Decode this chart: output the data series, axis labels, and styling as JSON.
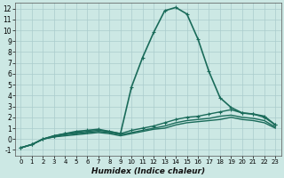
{
  "xlabel": "Humidex (Indice chaleur)",
  "xlim": [
    -0.5,
    23.5
  ],
  "ylim": [
    -1.5,
    12.5
  ],
  "xticks": [
    0,
    1,
    2,
    3,
    4,
    5,
    6,
    7,
    8,
    9,
    10,
    11,
    12,
    13,
    14,
    15,
    16,
    17,
    18,
    19,
    20,
    21,
    22,
    23
  ],
  "yticks": [
    -1,
    0,
    1,
    2,
    3,
    4,
    5,
    6,
    7,
    8,
    9,
    10,
    11,
    12
  ],
  "bg_color": "#cce8e4",
  "grid_color": "#aacccc",
  "line_color": "#1a6b5a",
  "series": [
    {
      "x": [
        0,
        1,
        2,
        3,
        4,
        5,
        6,
        7,
        8,
        9,
        10,
        11,
        12,
        13,
        14,
        15,
        16,
        17,
        18,
        19,
        20,
        21,
        22,
        23
      ],
      "y": [
        -0.8,
        -0.5,
        0.0,
        0.3,
        0.5,
        0.7,
        0.8,
        0.9,
        0.7,
        0.5,
        4.8,
        7.5,
        9.8,
        11.8,
        12.1,
        11.5,
        9.2,
        6.2,
        3.8,
        2.9,
        2.4,
        2.3,
        2.1,
        1.3
      ],
      "lw": 1.2,
      "marker": true
    },
    {
      "x": [
        0,
        1,
        2,
        3,
        4,
        5,
        6,
        7,
        8,
        9,
        10,
        11,
        12,
        13,
        14,
        15,
        16,
        17,
        18,
        19,
        20,
        21,
        22,
        23
      ],
      "y": [
        -0.8,
        -0.5,
        0.0,
        0.3,
        0.5,
        0.6,
        0.7,
        0.8,
        0.7,
        0.5,
        0.8,
        1.0,
        1.2,
        1.5,
        1.8,
        2.0,
        2.1,
        2.3,
        2.5,
        2.7,
        2.4,
        2.3,
        2.0,
        1.3
      ],
      "lw": 1.0,
      "marker": true
    },
    {
      "x": [
        0,
        1,
        2,
        3,
        4,
        5,
        6,
        7,
        8,
        9,
        10,
        11,
        12,
        13,
        14,
        15,
        16,
        17,
        18,
        19,
        20,
        21,
        22,
        23
      ],
      "y": [
        -0.8,
        -0.5,
        0.0,
        0.2,
        0.4,
        0.5,
        0.6,
        0.7,
        0.6,
        0.4,
        0.6,
        0.8,
        1.0,
        1.2,
        1.5,
        1.7,
        1.8,
        1.9,
        2.1,
        2.2,
        2.0,
        1.9,
        1.7,
        1.1
      ],
      "lw": 1.0,
      "marker": false
    },
    {
      "x": [
        0,
        1,
        2,
        3,
        4,
        5,
        6,
        7,
        8,
        9,
        10,
        11,
        12,
        13,
        14,
        15,
        16,
        17,
        18,
        19,
        20,
        21,
        22,
        23
      ],
      "y": [
        -0.8,
        -0.5,
        0.0,
        0.2,
        0.3,
        0.4,
        0.5,
        0.6,
        0.5,
        0.3,
        0.5,
        0.7,
        0.9,
        1.0,
        1.3,
        1.5,
        1.6,
        1.7,
        1.8,
        2.0,
        1.8,
        1.7,
        1.5,
        1.0
      ],
      "lw": 1.0,
      "marker": false
    }
  ]
}
